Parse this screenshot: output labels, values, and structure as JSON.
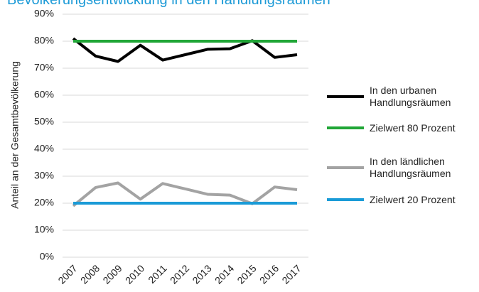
{
  "chart_data": {
    "type": "line",
    "title": "Bevölkerungsentwicklung in den Handlungsräumen",
    "y_label": "Anteil an der Gesamtbevölkerung",
    "categories": [
      "2007",
      "2008",
      "2009",
      "2010",
      "2011",
      "2012",
      "2013",
      "2014",
      "2015",
      "2016",
      "2017"
    ],
    "series": [
      {
        "name": "In den urbanen Handlungsräumen",
        "color": "#000000",
        "values": [
          81,
          74.5,
          72.5,
          78.5,
          73,
          75,
          77,
          77.2,
          80.2,
          74,
          75
        ]
      },
      {
        "name": "Zielwert 80 Prozent",
        "color": "#21a637",
        "values": [
          80,
          80,
          80,
          80,
          80,
          80,
          80,
          80,
          80,
          80,
          80
        ]
      },
      {
        "name": "In den ländlichen Handlungsräumen",
        "color": "#a3a3a3",
        "values": [
          19,
          25.8,
          27.5,
          21.5,
          27.3,
          25.3,
          23.3,
          23,
          19.8,
          26,
          25
        ]
      },
      {
        "name": "Zielwert 20 Prozent",
        "color": "#1a9bd7",
        "values": [
          20,
          20,
          20,
          20,
          20,
          20,
          20,
          20,
          20,
          20,
          20
        ]
      }
    ],
    "ylim": [
      0,
      90
    ],
    "yticks": [
      {
        "value": 0,
        "label": "0%"
      },
      {
        "value": 10,
        "label": "10%"
      },
      {
        "value": 20,
        "label": "20%"
      },
      {
        "value": 30,
        "label": "30%"
      },
      {
        "value": 40,
        "label": "40%"
      },
      {
        "value": 50,
        "label": "50%"
      },
      {
        "value": 60,
        "label": "60%"
      },
      {
        "value": 70,
        "label": "70%"
      },
      {
        "value": 80,
        "label": "80%"
      },
      {
        "value": 90,
        "label": "90%"
      }
    ],
    "grid": true
  }
}
